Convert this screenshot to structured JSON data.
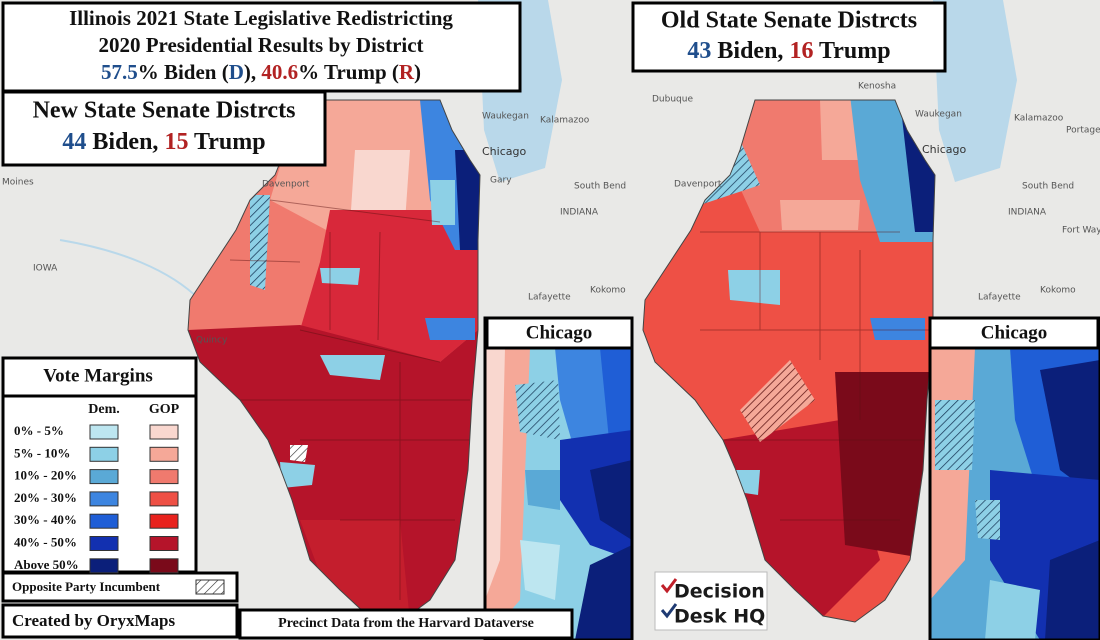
{
  "header": {
    "lines": [
      "Illinois 2021 State Legislative Redistricting",
      "2020 Presidential Results by District"
    ],
    "summary": [
      {
        "text": "57.5",
        "color": "#1f4e8c"
      },
      {
        "text": "% Biden (",
        "color": "#111111"
      },
      {
        "text": "D",
        "color": "#1f4e8c"
      },
      {
        "text": "), ",
        "color": "#111111"
      },
      {
        "text": "40.6",
        "color": "#b22222"
      },
      {
        "text": "% Trump (",
        "color": "#111111"
      },
      {
        "text": "R",
        "color": "#b22222"
      },
      {
        "text": ")",
        "color": "#111111"
      }
    ]
  },
  "new_districts": {
    "title": "New State Senate Distrcts",
    "summary": [
      {
        "text": "44",
        "color": "#1f4e8c"
      },
      {
        "text": " Biden, ",
        "color": "#111111"
      },
      {
        "text": "15",
        "color": "#b22222"
      },
      {
        "text": " Trump",
        "color": "#111111"
      }
    ]
  },
  "old_districts": {
    "title": "Old State Senate Distrcts",
    "summary": [
      {
        "text": "43",
        "color": "#1f4e8c"
      },
      {
        "text": " Biden, ",
        "color": "#111111"
      },
      {
        "text": "16",
        "color": "#b22222"
      },
      {
        "text": " Trump",
        "color": "#111111"
      }
    ]
  },
  "insets": [
    "Chicago",
    "Chicago"
  ],
  "legend": {
    "title": "Vote Margins",
    "columns": [
      "Dem.",
      "GOP"
    ],
    "rows": [
      {
        "label": "0% - 5%",
        "dem": "#bde6f0",
        "gop": "#f9d7cf"
      },
      {
        "label": "5% - 10%",
        "dem": "#8dd0e6",
        "gop": "#f5a898"
      },
      {
        "label": "10% - 20%",
        "dem": "#5aa9d6",
        "gop": "#f07a6e"
      },
      {
        "label": "20% - 30%",
        "dem": "#3d85e0",
        "gop": "#ee5045"
      },
      {
        "label": "30% - 40%",
        "dem": "#1f5ed6",
        "gop": "#e8221d"
      },
      {
        "label": "40% - 50%",
        "dem": "#1230b0",
        "gop": "#b5142a"
      },
      {
        "label": "Above 50%",
        "dem": "#0b1f7a",
        "gop": "#7a0a1a"
      }
    ],
    "hatch_label": "Opposite Party Incumbent"
  },
  "credits": {
    "author": "Created by OryxMaps",
    "source": "Precinct Data from the Harvard Dataverse",
    "logo": [
      "Decision",
      "Desk HQ"
    ]
  },
  "place_labels": [
    "Moines",
    "Davenport",
    "IOWA",
    "Quincy",
    "Chicago",
    "Gary",
    "South Bend",
    "INDIANA",
    "Kalamazoo",
    "Waukegan",
    "Lafayette",
    "Kokomo",
    "Dubuque",
    "Kenosha",
    "Waukegan",
    "Chicago",
    "Davenport",
    "South Bend",
    "INDIANA",
    "Kalamazoo",
    "Lafayette",
    "Kokomo",
    "Portage",
    "Fort Way"
  ]
}
